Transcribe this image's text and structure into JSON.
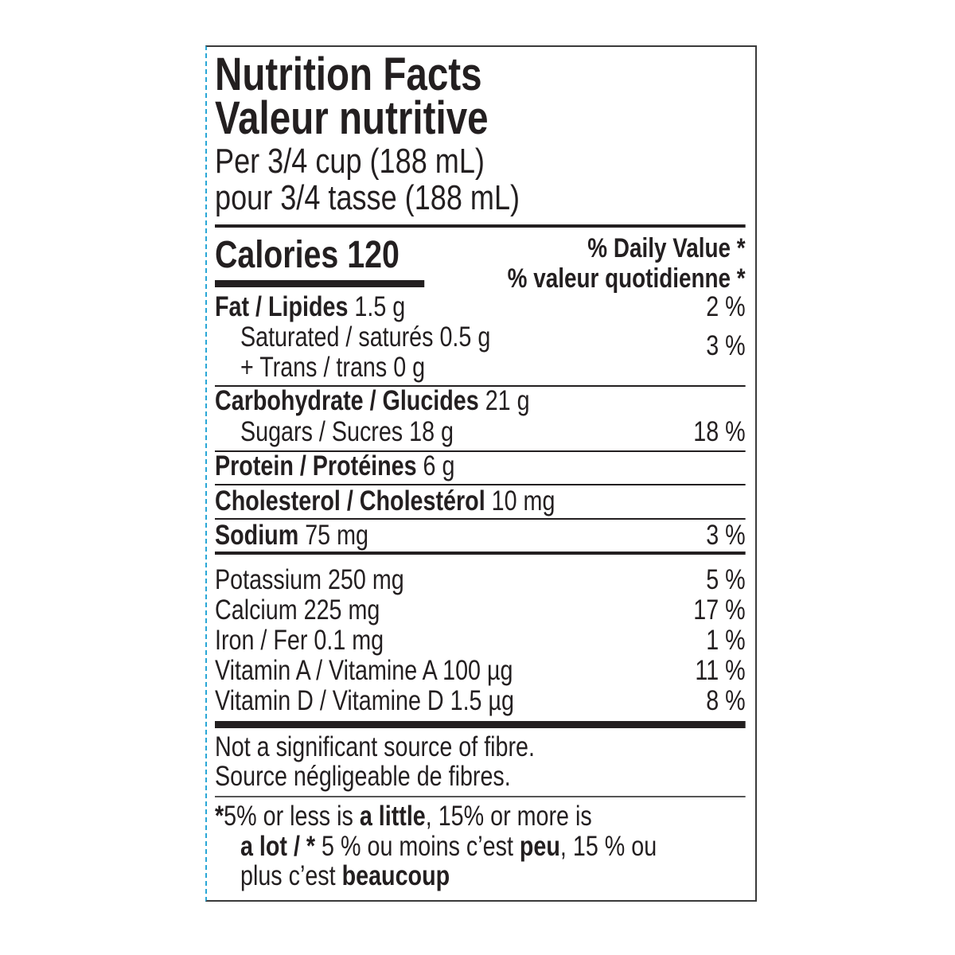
{
  "header": {
    "title_en": "Nutrition Facts",
    "title_fr": "Valeur nutritive",
    "serving_en": "Per 3/4 cup (188 mL)",
    "serving_fr": "pour 3/4 tasse (188 mL)"
  },
  "calories": {
    "label": "Calories",
    "value": "120"
  },
  "daily_value": {
    "en": "% Daily Value *",
    "fr": "% valeur quotidienne *"
  },
  "nutrients": [
    {
      "name": "Fat / Lipides",
      "amount": " 1.5 g",
      "dv": "2 %"
    },
    {
      "name": "Saturated / saturés 0.5 g",
      "amount": "",
      "dv": "3 %"
    },
    {
      "name": "+ Trans / trans 0 g",
      "amount": "",
      "dv": ""
    },
    {
      "name": "Carbohydrate / Glucides",
      "amount": " 21 g",
      "dv": ""
    },
    {
      "name": "Sugars / Sucres 18 g",
      "amount": "",
      "dv": "18 %"
    },
    {
      "name": "Protein / Protéines",
      "amount": " 6 g",
      "dv": ""
    },
    {
      "name": "Cholesterol / Cholestérol",
      "amount": " 10 mg",
      "dv": ""
    },
    {
      "name": "Sodium",
      "amount": " 75 mg",
      "dv": "3 %"
    }
  ],
  "minerals": [
    {
      "name": "Potassium 250 mg",
      "dv": "5 %"
    },
    {
      "name": "Calcium 225 mg",
      "dv": "17 %"
    },
    {
      "name": "Iron / Fer 0.1 mg",
      "dv": "1 %"
    },
    {
      "name": "Vitamin A / Vitamine A 100 µg",
      "dv": "11 %"
    },
    {
      "name": "Vitamin D / Vitamine D 1.5 µg",
      "dv": "8 %"
    }
  ],
  "fibre": {
    "en": "Not a significant source of fibre.",
    "fr": "Source négligeable de fibres."
  },
  "footnote": {
    "s1": "*",
    "s2": "5% or less is ",
    "s3": "a little",
    "s4": ", 15% or more is",
    "s5": "a lot / *",
    "s6": " 5 % ou moins c’est ",
    "s7": "peu",
    "s8": ", 15 % ou",
    "s9": "plus c’est ",
    "s10": "beaucoup"
  },
  "colors": {
    "ink": "#231f20",
    "edge_dash": "#2aa7d6",
    "border": "#3a3a3a"
  }
}
